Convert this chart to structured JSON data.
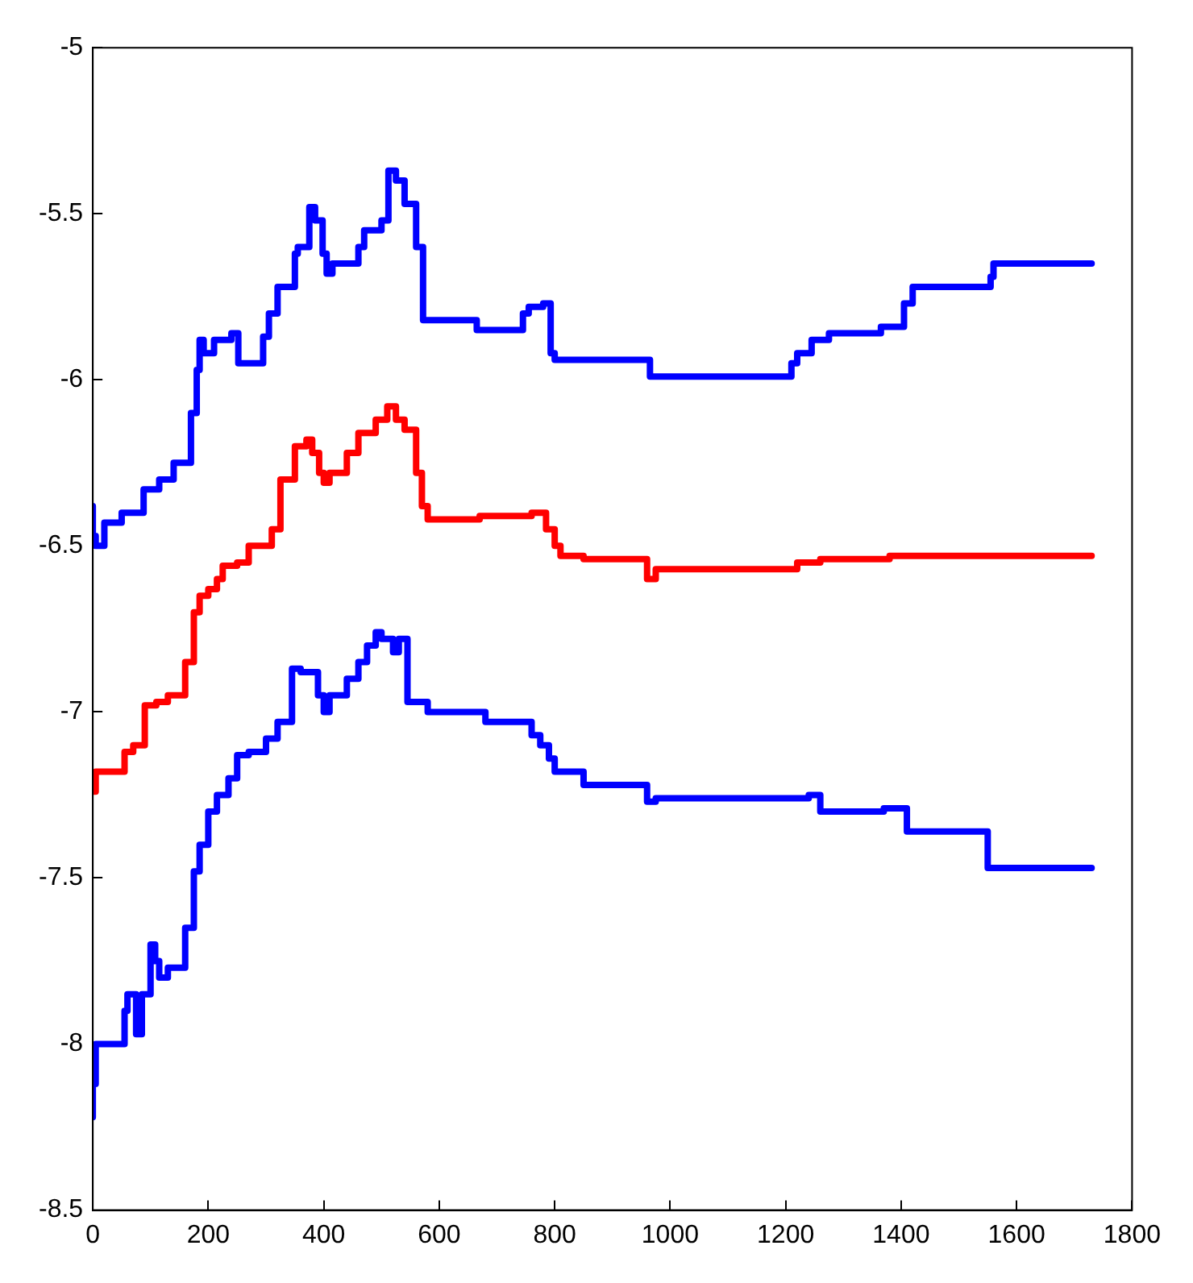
{
  "chart_data": {
    "type": "step",
    "xlim": [
      0,
      1800
    ],
    "xticks": [
      0,
      200,
      400,
      600,
      800,
      1000,
      1200,
      1400,
      1600,
      1800
    ],
    "ylim": [
      -8.5,
      -5
    ],
    "yticks": [
      -8.5,
      -8,
      -7.5,
      -7,
      -6.5,
      -6,
      -5.5,
      -5
    ],
    "grid": false,
    "legend": false,
    "marker": "none",
    "line_style": "solid",
    "series": [
      {
        "color": "#0000ff",
        "x": [
          0,
          5,
          20,
          50,
          88,
          115,
          140,
          170,
          180,
          185,
          192,
          210,
          240,
          252,
          265,
          295,
          305,
          320,
          350,
          355,
          375,
          385,
          398,
          405,
          415,
          460,
          470,
          500,
          512,
          525,
          540,
          560,
          572,
          582,
          665,
          680,
          745,
          755,
          780,
          793,
          800,
          855,
          965,
          975,
          1210,
          1220,
          1245,
          1275,
          1365,
          1405,
          1420,
          1555,
          1560,
          1700,
          1730
        ],
        "values": [
          -6.38,
          -6.47,
          -6.5,
          -6.43,
          -6.4,
          -6.33,
          -6.3,
          -6.25,
          -6.1,
          -5.97,
          -5.88,
          -5.92,
          -5.88,
          -5.86,
          -5.95,
          -5.95,
          -5.87,
          -5.8,
          -5.72,
          -5.62,
          -5.6,
          -5.48,
          -5.52,
          -5.62,
          -5.68,
          -5.65,
          -5.6,
          -5.55,
          -5.52,
          -5.37,
          -5.4,
          -5.47,
          -5.6,
          -5.82,
          -5.82,
          -5.85,
          -5.85,
          -5.8,
          -5.78,
          -5.77,
          -5.92,
          -5.94,
          -5.94,
          -5.99,
          -5.99,
          -5.95,
          -5.92,
          -5.88,
          -5.86,
          -5.84,
          -5.77,
          -5.72,
          -5.69,
          -5.65,
          -5.65
        ]
      },
      {
        "color": "#ff0000",
        "x": [
          0,
          5,
          55,
          70,
          90,
          110,
          130,
          160,
          175,
          185,
          200,
          215,
          225,
          250,
          270,
          310,
          325,
          350,
          370,
          380,
          392,
          400,
          410,
          440,
          460,
          490,
          510,
          525,
          540,
          560,
          570,
          580,
          670,
          760,
          785,
          800,
          810,
          850,
          960,
          975,
          1220,
          1260,
          1380,
          1550,
          1730
        ],
        "values": [
          -7.22,
          -7.24,
          -7.18,
          -7.12,
          -7.1,
          -6.98,
          -6.97,
          -6.95,
          -6.85,
          -6.7,
          -6.65,
          -6.63,
          -6.6,
          -6.56,
          -6.55,
          -6.5,
          -6.45,
          -6.3,
          -6.2,
          -6.18,
          -6.22,
          -6.28,
          -6.31,
          -6.28,
          -6.22,
          -6.16,
          -6.12,
          -6.08,
          -6.12,
          -6.15,
          -6.28,
          -6.38,
          -6.42,
          -6.41,
          -6.4,
          -6.45,
          -6.5,
          -6.53,
          -6.54,
          -6.6,
          -6.57,
          -6.55,
          -6.54,
          -6.53,
          -6.53
        ]
      },
      {
        "color": "#0000ff",
        "x": [
          0,
          5,
          55,
          60,
          75,
          85,
          100,
          108,
          115,
          130,
          160,
          175,
          185,
          200,
          215,
          235,
          250,
          270,
          300,
          320,
          345,
          360,
          390,
          400,
          410,
          440,
          460,
          475,
          490,
          500,
          520,
          530,
          545,
          580,
          680,
          760,
          775,
          790,
          800,
          850,
          960,
          975,
          1240,
          1260,
          1370,
          1410,
          1550,
          1695,
          1730
        ],
        "values": [
          -8.22,
          -8.12,
          -8.0,
          -7.9,
          -7.85,
          -7.97,
          -7.85,
          -7.7,
          -7.75,
          -7.8,
          -7.77,
          -7.65,
          -7.48,
          -7.4,
          -7.3,
          -7.25,
          -7.2,
          -7.13,
          -7.12,
          -7.08,
          -7.03,
          -6.87,
          -6.88,
          -6.95,
          -7.0,
          -6.95,
          -6.9,
          -6.85,
          -6.8,
          -6.76,
          -6.78,
          -6.82,
          -6.78,
          -6.97,
          -7.0,
          -7.03,
          -7.07,
          -7.1,
          -7.14,
          -7.18,
          -7.22,
          -7.27,
          -7.26,
          -7.25,
          -7.3,
          -7.29,
          -7.36,
          -7.47,
          -7.47
        ]
      }
    ]
  }
}
